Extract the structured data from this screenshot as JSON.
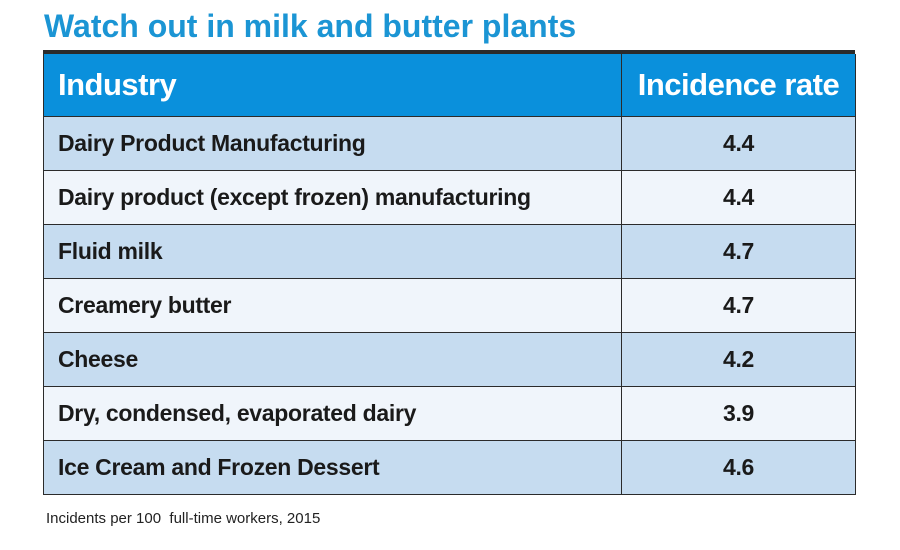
{
  "title": "Watch out in milk and butter plants",
  "footnote": "Incidents per 100  full-time workers, 2015",
  "colors": {
    "title": "#1b95d4",
    "header_background": "#0a90dc",
    "row_odd": "#c6dcf0",
    "row_even": "#f0f5fb"
  },
  "chart_data": {
    "type": "table",
    "title": "Watch out in milk and butter plants",
    "columns": [
      "Industry",
      "Incidence rate"
    ],
    "rows": [
      {
        "industry": "Dairy Product Manufacturing",
        "rate": "4.4"
      },
      {
        "industry": "Dairy product (except frozen) manufacturing",
        "rate": "4.4"
      },
      {
        "industry": "Fluid milk",
        "rate": "4.7"
      },
      {
        "industry": "Creamery butter",
        "rate": "4.7"
      },
      {
        "industry": "Cheese",
        "rate": "4.2"
      },
      {
        "industry": "Dry, condensed, evaporated dairy",
        "rate": "3.9"
      },
      {
        "industry": "Ice Cream and Frozen Dessert",
        "rate": "4.6"
      }
    ],
    "note": "Incidents per 100  full-time workers, 2015"
  }
}
